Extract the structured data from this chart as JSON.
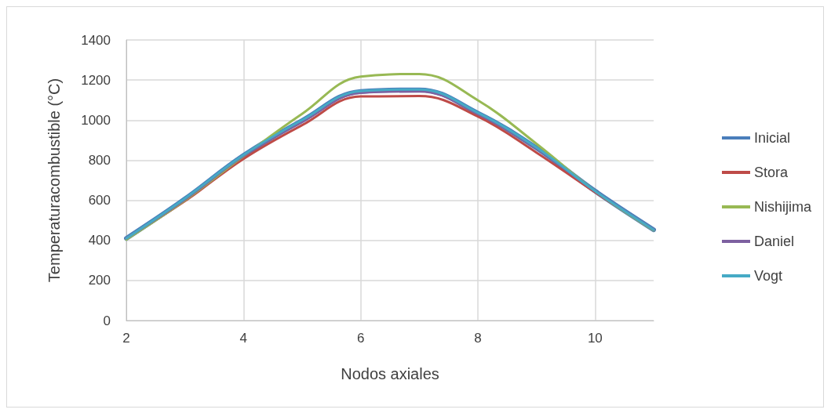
{
  "chart_data": {
    "type": "line",
    "xlabel": "Nodos axiales",
    "ylabel": "Temperaturacombustible (°C)",
    "x": [
      2,
      3,
      4,
      5,
      6,
      7,
      8,
      9,
      10,
      11
    ],
    "xlim": [
      2,
      11
    ],
    "xticks": [
      2,
      4,
      6,
      8,
      10
    ],
    "ylim": [
      0,
      1400
    ],
    "yticks": [
      0,
      200,
      400,
      600,
      800,
      1000,
      1200,
      1400
    ],
    "grid": true,
    "legend": "right",
    "marker": "none",
    "line_style": "solid",
    "series": [
      {
        "name": "Inicial",
        "color": "#4a7ebb",
        "values": [
          410,
          607,
          824,
          998,
          1143,
          1151,
          1035,
          861,
          646,
          453
        ]
      },
      {
        "name": "Stora",
        "color": "#be4b48",
        "values": [
          410,
          596,
          807,
          975,
          1118,
          1120,
          1018,
          838,
          640,
          453
        ]
      },
      {
        "name": "Nishijima",
        "color": "#98b954",
        "values": [
          404,
          600,
          820,
          1031,
          1217,
          1230,
          1099,
          882,
          646,
          450
        ]
      },
      {
        "name": "Daniel",
        "color": "#7d60a0",
        "values": [
          410,
          604,
          822,
          991,
          1136,
          1143,
          1031,
          858,
          646,
          453
        ]
      },
      {
        "name": "Vogt",
        "color": "#46aac5",
        "values": [
          410,
          609,
          826,
          1000,
          1145,
          1153,
          1037,
          863,
          646,
          453
        ]
      }
    ]
  }
}
